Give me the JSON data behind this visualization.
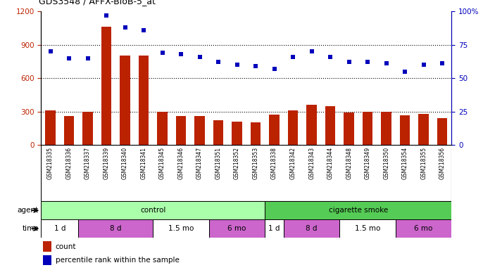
{
  "title": "GDS3548 / AFFX-BioB-5_at",
  "samples": [
    "GSM218335",
    "GSM218336",
    "GSM218337",
    "GSM218339",
    "GSM218340",
    "GSM218341",
    "GSM218345",
    "GSM218346",
    "GSM218347",
    "GSM218351",
    "GSM218352",
    "GSM218353",
    "GSM218338",
    "GSM218342",
    "GSM218343",
    "GSM218344",
    "GSM218348",
    "GSM218349",
    "GSM218350",
    "GSM218354",
    "GSM218355",
    "GSM218356"
  ],
  "counts": [
    310,
    260,
    300,
    1060,
    800,
    800,
    300,
    260,
    260,
    220,
    210,
    205,
    270,
    310,
    360,
    350,
    290,
    300,
    300,
    265,
    280,
    240
  ],
  "percentiles": [
    70,
    65,
    65,
    97,
    88,
    86,
    69,
    68,
    66,
    62,
    60,
    59,
    57,
    66,
    70,
    66,
    62,
    62,
    61,
    55,
    60,
    61
  ],
  "bar_color": "#BB2200",
  "dot_color": "#0000BB",
  "ylim_left": [
    0,
    1200
  ],
  "ylim_right": [
    0,
    100
  ],
  "yticks_left": [
    0,
    300,
    600,
    900,
    1200
  ],
  "yticks_right": [
    0,
    25,
    50,
    75,
    100
  ],
  "agent_groups": [
    {
      "label": "control",
      "start": 0,
      "end": 12,
      "color": "#AAFFAA"
    },
    {
      "label": "cigarette smoke",
      "start": 12,
      "end": 22,
      "color": "#55CC55"
    }
  ],
  "time_groups": [
    {
      "label": "1 d",
      "start": 0,
      "end": 2,
      "color": "#FFFFFF"
    },
    {
      "label": "8 d",
      "start": 2,
      "end": 6,
      "color": "#CC66CC"
    },
    {
      "label": "1.5 mo",
      "start": 6,
      "end": 9,
      "color": "#FFFFFF"
    },
    {
      "label": "6 mo",
      "start": 9,
      "end": 12,
      "color": "#CC66CC"
    },
    {
      "label": "1 d",
      "start": 12,
      "end": 13,
      "color": "#FFFFFF"
    },
    {
      "label": "8 d",
      "start": 13,
      "end": 16,
      "color": "#CC66CC"
    },
    {
      "label": "1.5 mo",
      "start": 16,
      "end": 19,
      "color": "#FFFFFF"
    },
    {
      "label": "6 mo",
      "start": 19,
      "end": 22,
      "color": "#CC66CC"
    }
  ],
  "legend_count_label": "count",
  "legend_pct_label": "percentile rank within the sample",
  "bg_color": "#CCCCCC",
  "plot_bg": "#FFFFFF",
  "label_area_bg": "#CCCCCC"
}
